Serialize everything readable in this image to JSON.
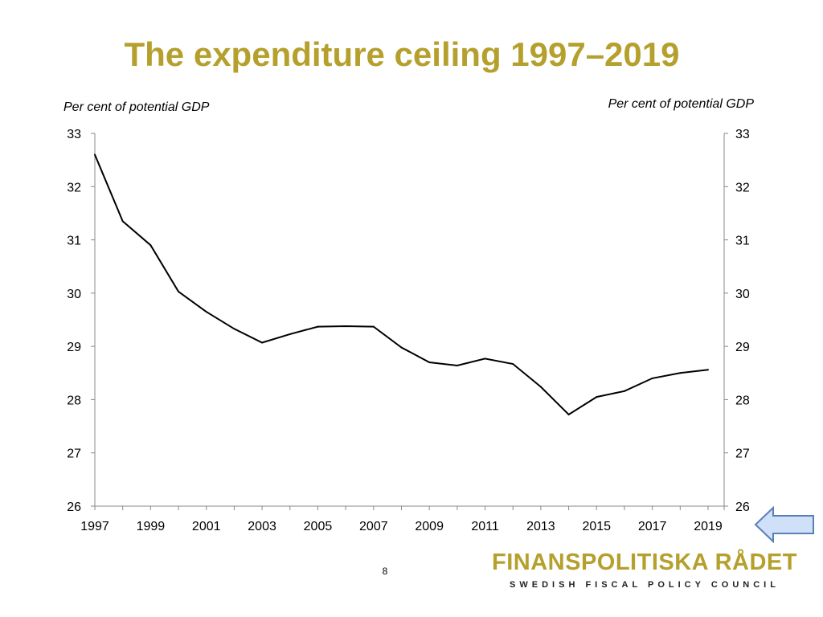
{
  "slide": {
    "title": "The expenditure ceiling 1997–2019",
    "page_number": "8"
  },
  "logo": {
    "name": "FINANSPOLITISKA RÅDET",
    "subtitle": "SWEDISH FISCAL POLICY COUNCIL"
  },
  "nav": {
    "back_icon": "left-arrow-icon"
  },
  "colors": {
    "title": "#b5a02d",
    "line": "#000000",
    "arrow_fill": "#cfe0f8",
    "arrow_stroke": "#5a7fb8"
  },
  "chart_data": {
    "type": "line",
    "title": "The expenditure ceiling 1997–2019",
    "ylabel_left": "Per cent of potential GDP",
    "ylabel_right": "Per cent of potential GDP",
    "xlabel": "",
    "ylim": [
      26,
      33
    ],
    "y_ticks": [
      "26",
      "27",
      "28",
      "29",
      "30",
      "31",
      "32",
      "33"
    ],
    "x_tick_labels": [
      "1997",
      "1999",
      "2001",
      "2003",
      "2005",
      "2007",
      "2009",
      "2011",
      "2013",
      "2015",
      "2017",
      "2019"
    ],
    "grid": false,
    "legend": "none",
    "series": [
      {
        "name": "Expenditure ceiling",
        "x": [
          1997,
          1998,
          1999,
          2000,
          2001,
          2002,
          2003,
          2004,
          2005,
          2006,
          2007,
          2008,
          2009,
          2010,
          2011,
          2012,
          2013,
          2014,
          2015,
          2016,
          2017,
          2018,
          2019
        ],
        "values": [
          32.6,
          31.35,
          30.9,
          30.03,
          29.65,
          29.33,
          29.07,
          29.23,
          29.37,
          29.38,
          29.37,
          28.98,
          28.7,
          28.64,
          28.77,
          28.67,
          28.24,
          27.72,
          28.05,
          28.16,
          28.4,
          28.5,
          28.56
        ]
      }
    ]
  }
}
